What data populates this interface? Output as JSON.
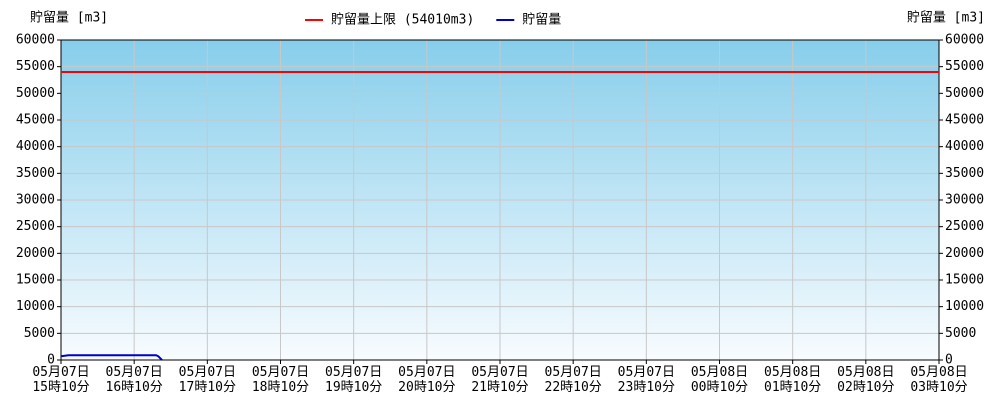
{
  "chart_data": {
    "type": "line",
    "y_label": "貯留量 [m3]",
    "y2_label": "貯留量 [m3]",
    "xlim": [
      0,
      12
    ],
    "xticks": [
      {
        "value": 0,
        "label": "05月07日 15時10分"
      },
      {
        "value": 1,
        "label": "05月07日 16時10分"
      },
      {
        "value": 2,
        "label": "05月07日 17時10分"
      },
      {
        "value": 3,
        "label": "05月07日 18時10分"
      },
      {
        "value": 4,
        "label": "05月07日 19時10分"
      },
      {
        "value": 5,
        "label": "05月07日 20時10分"
      },
      {
        "value": 6,
        "label": "05月07日 21時10分"
      },
      {
        "value": 7,
        "label": "05月07日 22時10分"
      },
      {
        "value": 8,
        "label": "05月07日 23時10分"
      },
      {
        "value": 9,
        "label": "05月08日 00時10分"
      },
      {
        "value": 10,
        "label": "05月08日 01時10分"
      },
      {
        "value": 11,
        "label": "05月08日 02時10分"
      },
      {
        "value": 12,
        "label": "05月08日 03時10分"
      }
    ],
    "ylim": [
      0,
      60000
    ],
    "yticks": [
      0,
      5000,
      10000,
      15000,
      20000,
      25000,
      30000,
      35000,
      40000,
      45000,
      50000,
      55000,
      60000
    ],
    "y2lim": [
      0,
      60000
    ],
    "y2ticks": [
      0,
      5000,
      10000,
      15000,
      20000,
      25000,
      30000,
      35000,
      40000,
      45000,
      50000,
      55000,
      60000
    ],
    "grid": true,
    "legend": "top",
    "series": [
      {
        "name": "貯留量上限 (54010m3)",
        "color": "#ff0000",
        "x": [
          0,
          12
        ],
        "values": [
          54010,
          54010
        ]
      },
      {
        "name": "貯留量",
        "color": "#0000cc",
        "x": [
          0,
          0.1,
          1.3,
          1.33,
          1.38
        ],
        "values": [
          700,
          900,
          900,
          700,
          0
        ]
      }
    ]
  }
}
